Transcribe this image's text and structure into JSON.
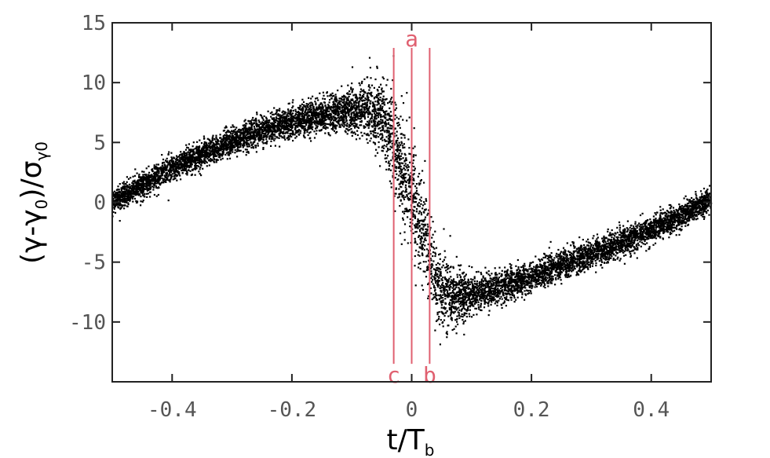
{
  "chart_data": {
    "type": "scatter",
    "title": "",
    "xlabel": {
      "main": "t/T",
      "sub": "b"
    },
    "ylabel": {
      "p1": "(γ-γ",
      "sub1": "0",
      "p2": ")/σ",
      "sub2": "γ0"
    },
    "xlim": [
      -0.5,
      0.5
    ],
    "ylim": [
      -15,
      15
    ],
    "x_ticks": [
      -0.4,
      -0.2,
      0,
      0.2,
      0.4
    ],
    "x_tick_labels": [
      "-0.4",
      "-0.2",
      "0",
      "0.2",
      "0.4"
    ],
    "y_ticks": [
      -10,
      -5,
      0,
      5,
      10,
      15
    ],
    "y_tick_labels": [
      "-10",
      "-5",
      "0",
      "5",
      "10",
      "15"
    ],
    "grid": false,
    "legend": "none",
    "point_color": "#000000",
    "marker_color": "#e06070",
    "marker_lines": [
      {
        "label": "c",
        "x": -0.03,
        "y_top": 12.9,
        "y_bottom": -13.5,
        "label_position": "bottom"
      },
      {
        "label": "a",
        "x": 0.0,
        "y_top": 12.9,
        "y_bottom": -13.5,
        "label_position": "top"
      },
      {
        "label": "b",
        "x": 0.03,
        "y_top": 12.9,
        "y_bottom": -13.5,
        "label_position": "bottom"
      }
    ],
    "distribution_curve": {
      "x": [
        -0.5,
        -0.45,
        -0.4,
        -0.35,
        -0.3,
        -0.25,
        -0.2,
        -0.15,
        -0.1,
        -0.07,
        -0.05,
        -0.035,
        -0.02,
        -0.01,
        0.0,
        0.01,
        0.02,
        0.03,
        0.04,
        0.05,
        0.07,
        0.1,
        0.15,
        0.2,
        0.25,
        0.3,
        0.35,
        0.4,
        0.45,
        0.5
      ],
      "y": [
        0,
        1.4,
        2.9,
        4.0,
        5.1,
        6.0,
        6.7,
        7.3,
        7.7,
        7.7,
        7.2,
        5.5,
        3.3,
        1.7,
        0.4,
        -1.0,
        -2.6,
        -4.4,
        -6.3,
        -7.3,
        -7.8,
        -7.8,
        -7.1,
        -6.2,
        -5.2,
        -4.3,
        -3.4,
        -2.3,
        -1.1,
        0.3
      ]
    },
    "distribution_spread": {
      "x": [
        -0.5,
        -0.2,
        -0.1,
        -0.05,
        0.0,
        0.05,
        0.1,
        0.2,
        0.5
      ],
      "y_sd": [
        0.5,
        0.6,
        0.8,
        1.5,
        2.5,
        1.5,
        0.8,
        0.6,
        0.5
      ],
      "x_sd": [
        0.003,
        0.003,
        0.005,
        0.012,
        0.015,
        0.012,
        0.005,
        0.003,
        0.003
      ]
    },
    "n_points": 9000
  }
}
